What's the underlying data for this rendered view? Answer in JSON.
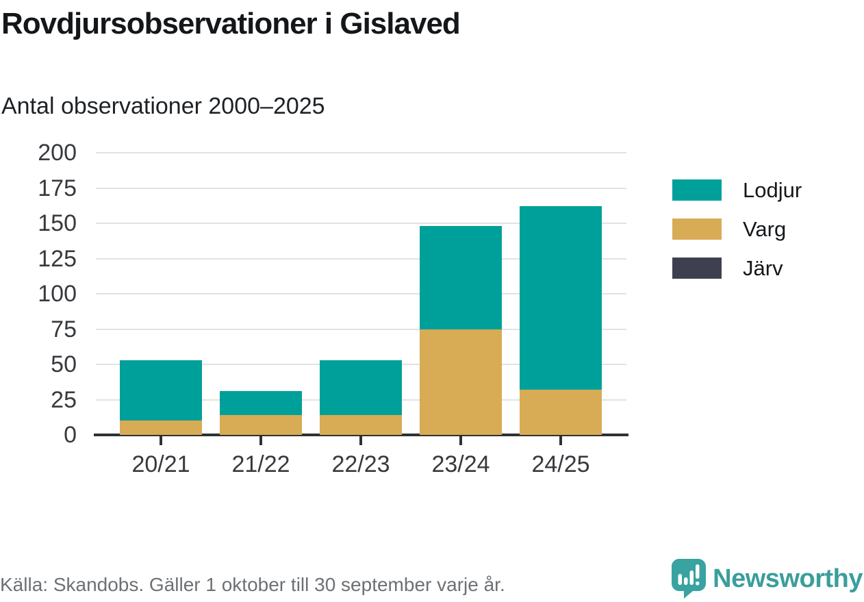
{
  "header": {
    "title": "Rovdjursobservationer i Gislaved",
    "subtitle": "Antal observationer 2000–2025"
  },
  "chart_data": {
    "type": "bar",
    "stacked": true,
    "title": "Rovdjursobservationer i Gislaved",
    "subtitle": "Antal observationer 2000–2025",
    "categories": [
      "20/21",
      "21/22",
      "22/23",
      "23/24",
      "24/25"
    ],
    "series": [
      {
        "name": "Lodjur",
        "color": "#00a09a",
        "values": [
          43,
          17,
          39,
          73,
          130
        ]
      },
      {
        "name": "Varg",
        "color": "#d8ab55",
        "values": [
          10,
          14,
          14,
          75,
          32
        ]
      },
      {
        "name": "Järv",
        "color": "#3f404f",
        "values": [
          0,
          0,
          0,
          0,
          0
        ]
      }
    ],
    "stack_order": [
      "Varg",
      "Lodjur",
      "Järv"
    ],
    "totals": [
      53,
      31,
      53,
      148,
      162
    ],
    "xlabel": "",
    "ylabel": "",
    "ylim": [
      0,
      200
    ],
    "yticks": [
      0,
      25,
      50,
      75,
      100,
      125,
      150,
      175,
      200
    ],
    "grid": "horizontal",
    "legend_position": "right"
  },
  "legend": {
    "items": [
      {
        "label": "Lodjur",
        "color": "#00a09a"
      },
      {
        "label": "Varg",
        "color": "#d8ab55"
      },
      {
        "label": "Järv",
        "color": "#3f404f"
      }
    ]
  },
  "footer": {
    "source": "Källa: Skandobs. Gäller 1 oktober till 30 september varje år.",
    "brand": "Newsworthy",
    "logo_icon": "speech-bubble-bar-chart-icon"
  },
  "colors": {
    "background": "#ffffff",
    "title_text": "#14171a",
    "axis_text": "#36393d",
    "gridline": "#e2e2e2",
    "axis_line": "#2e3133",
    "source_text": "#6d7175",
    "brand_teal": "#3a9e9c"
  }
}
